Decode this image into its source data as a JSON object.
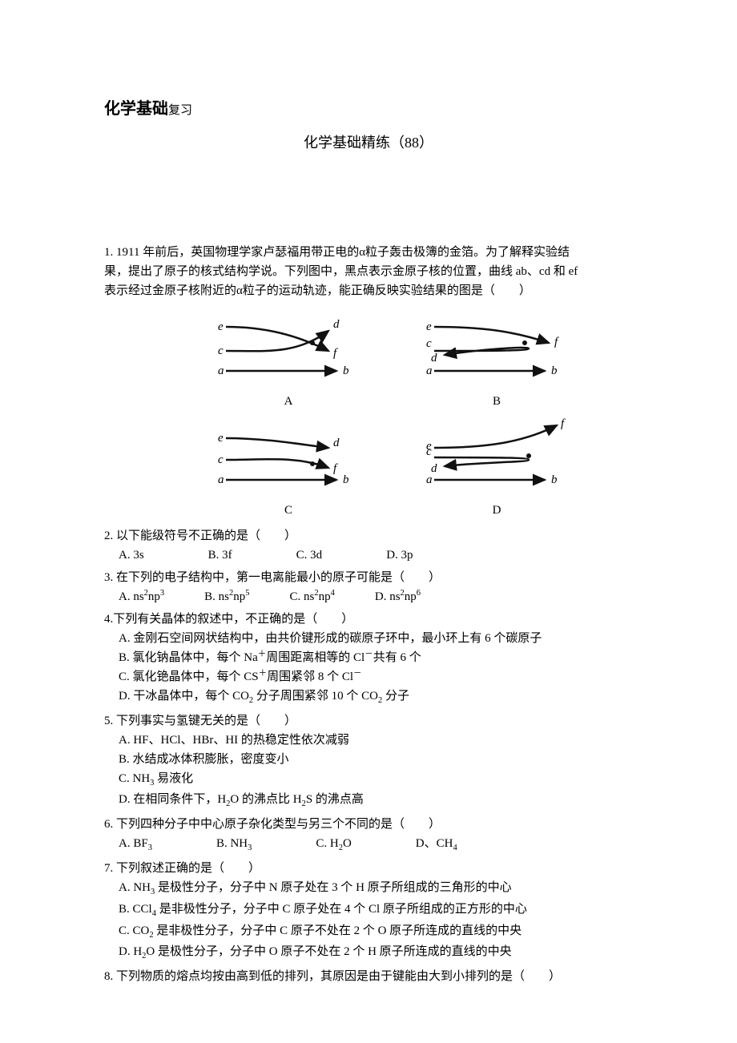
{
  "header": {
    "title_main": "化学基础",
    "title_sub": "复习"
  },
  "subtitle": "化学基础精练（88）",
  "questions": [
    {
      "num": "1.",
      "stem_lines": [
        "1911 年前后，英国物理学家卢瑟福用带正电的α粒子轰击极簿的金箔。为了解释实验结",
        "果，提出了原子的核式结构学说。下列图中，黑点表示金原子核的位置，曲线 ab、cd 和 ef",
        "表示经过金原子核附近的α粒子的运动轨迹，能正确反映实验结果的图是（　　）"
      ],
      "figure": {
        "panels": [
          "A",
          "B",
          "C",
          "D"
        ],
        "stroke_color": "#111111",
        "stroke_w": 2.5,
        "font_size": 15,
        "node_labels": [
          "a",
          "b",
          "c",
          "d",
          "e",
          "f"
        ]
      }
    },
    {
      "num": "2.",
      "stem": "以下能级符号不正确的是（　　）",
      "options": [
        "A. 3s",
        "B. 3f",
        "C. 3d",
        "D. 3p"
      ],
      "layout": "row-wide"
    },
    {
      "num": "3.",
      "stem": "在下列的电子结构中，第一电离能最小的原子可能是（　　）",
      "options_html": [
        "A. ns<sup>2</sup>np<sup>3</sup>",
        "B. ns<sup>2</sup>np<sup>5</sup>",
        "C. ns<sup>2</sup>np<sup>4</sup>",
        "D. ns<sup>2</sup>np<sup>6</sup>"
      ],
      "layout": "row"
    },
    {
      "num": "4.",
      "stem": "下列有关晶体的叙述中，不正确的是（　　）",
      "options_html": [
        "A.  金刚石空间网状结构中，由共价键形成的碳原子环中，最小环上有 6 个碳原子",
        "B.  氯化钠晶体中，每个 Na<sup>＋</sup>周围距离相等的 Cl<sup>－</sup>共有 6 个",
        "C.  氯化铯晶体中，每个 CS<sup>＋</sup>周围紧邻 8 个 Cl<sup>－</sup>",
        "D.  干冰晶体中，每个 CO<sub>2</sub> 分子周围紧邻 10 个 CO<sub>2</sub> 分子"
      ],
      "layout": "col"
    },
    {
      "num": "5.",
      "stem": "下列事实与氢键无关的是（　　）",
      "options_html": [
        "A. HF、HCl、HBr、HI 的热稳定性依次减弱",
        "B.  水结成冰体积膨胀，密度变小",
        "C. NH<sub>3</sub> 易液化",
        "D.  在相同条件下，H<sub>2</sub>O 的沸点比 H<sub>2</sub>S 的沸点高"
      ],
      "layout": "col"
    },
    {
      "num": "6.",
      "stem": "下列四种分子中中心原子杂化类型与另三个不同的是（　　）",
      "options_html": [
        "A. BF<sub>3</sub>",
        "B. NH<sub>3</sub>",
        "C. H<sub>2</sub>O",
        "D、CH<sub>4</sub>"
      ],
      "layout": "row-wide"
    },
    {
      "num": "7.",
      "stem": "下列叙述正确的是（　　）",
      "options_html": [
        "A. NH<sub>3</sub> 是极性分子，分子中 N 原子处在 3 个 H 原子所组成的三角形的中心",
        "B. CCl<sub>4</sub> 是非极性分子，分子中 C 原子处在 4 个 Cl 原子所组成的正方形的中心",
        "C. CO<sub>2</sub> 是非极性分子，分子中 C 原子不处在 2 个 O 原子所连成的直线的中央",
        "D. H<sub>2</sub>O 是极性分子，分子中 O 原子不处在 2 个 H 原子所连成的直线的中央"
      ],
      "layout": "col"
    },
    {
      "num": "8.",
      "stem": "下列物质的熔点均按由高到低的排列，其原因是由于键能由大到小排列的是（　　）"
    }
  ]
}
